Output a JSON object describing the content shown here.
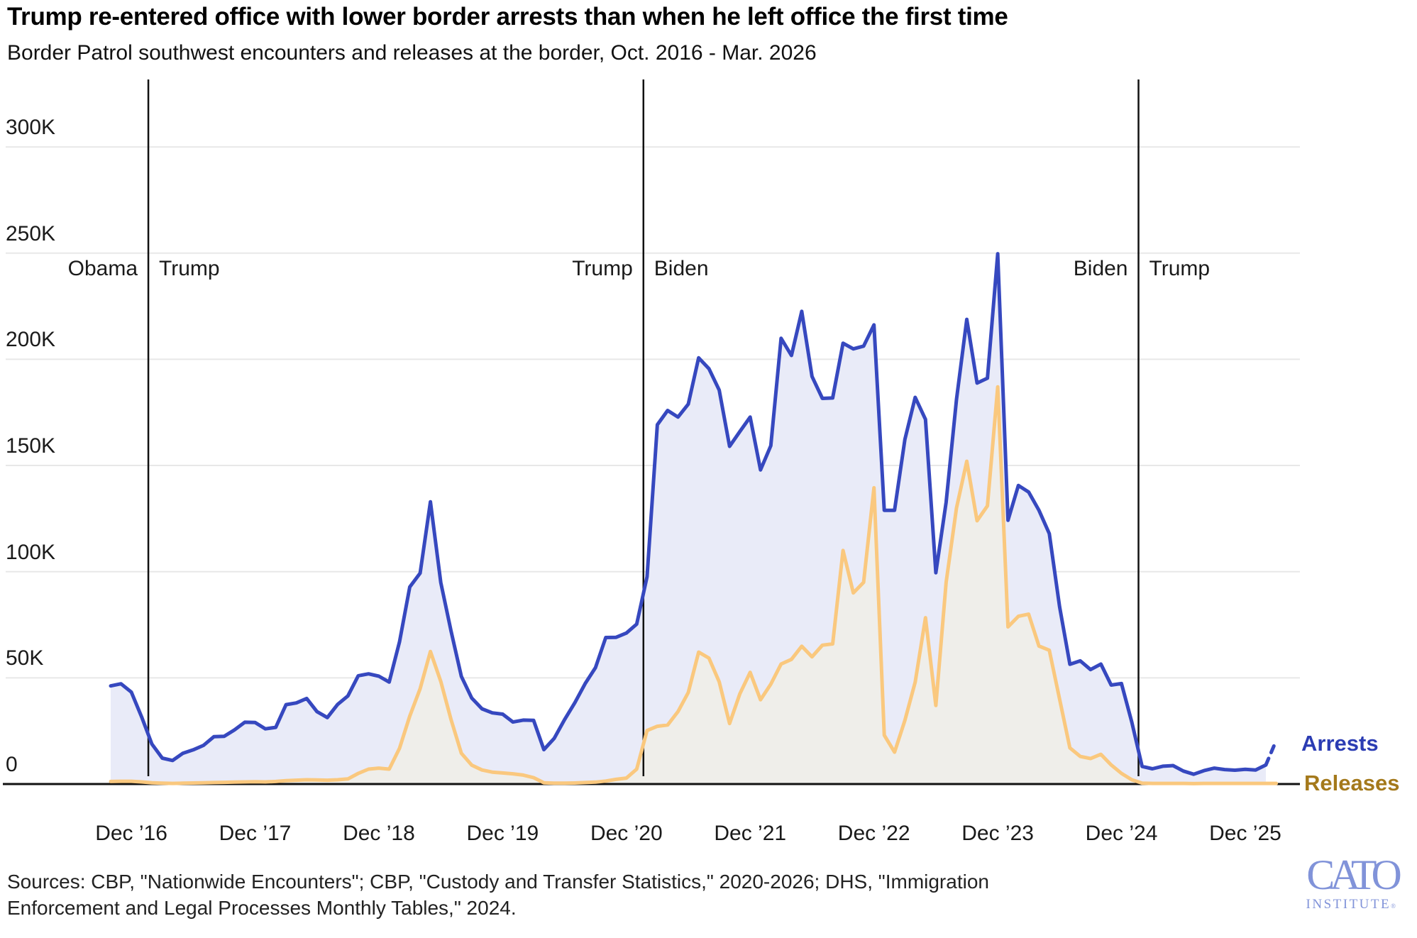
{
  "header": {
    "title": "Trump re-entered office with lower border arrests than when he left office the first time",
    "subtitle": "Border Patrol southwest encounters and releases at the border, Oct. 2016 - Mar. 2026"
  },
  "chart_data": {
    "type": "area",
    "x_start_month": "Oct 2016",
    "x_end_month": "Mar 2026",
    "ylim": [
      0,
      300000
    ],
    "grid": "horizontal",
    "y_axis": {
      "ticks": [
        {
          "label": "0",
          "value_K": 0
        },
        {
          "label": "50K",
          "value_K": 50
        },
        {
          "label": "100K",
          "value_K": 100
        },
        {
          "label": "150K",
          "value_K": 150
        },
        {
          "label": "200K",
          "value_K": 200
        },
        {
          "label": "250K",
          "value_K": 250
        },
        {
          "label": "300K",
          "value_K": 300
        }
      ]
    },
    "x_axis": {
      "ticks": [
        {
          "label": "Dec ’16",
          "month_index": 2
        },
        {
          "label": "Dec ’17",
          "month_index": 14
        },
        {
          "label": "Dec ’18",
          "month_index": 26
        },
        {
          "label": "Dec ’19",
          "month_index": 38
        },
        {
          "label": "Dec ’20",
          "month_index": 50
        },
        {
          "label": "Dec ’21",
          "month_index": 62
        },
        {
          "label": "Dec ’22",
          "month_index": 74
        },
        {
          "label": "Dec ’23",
          "month_index": 86
        },
        {
          "label": "Dec ’24",
          "month_index": 98
        },
        {
          "label": "Dec ’25",
          "month_index": 110
        }
      ]
    },
    "president_transitions": [
      {
        "left": "Obama",
        "right": "Trump",
        "month_index": 3.65
      },
      {
        "left": "Trump",
        "right": "Biden",
        "month_index": 51.65
      },
      {
        "left": "Biden",
        "right": "Trump",
        "month_index": 99.65
      }
    ],
    "series": [
      {
        "name": "Arrests",
        "line_color": "#3648bf",
        "fill_color": "#e9ebf8",
        "label_color": "#2b3cb3",
        "dashed_from_index": 112,
        "values_K": [
          46.2,
          47.2,
          43.3,
          31.6,
          18.8,
          12.2,
          11.1,
          14.5,
          16.1,
          18.2,
          22.3,
          22.5,
          25.5,
          29.1,
          29.0,
          26.0,
          26.7,
          37.4,
          38.2,
          40.3,
          34.1,
          31.3,
          37.5,
          41.5,
          51.0,
          51.9,
          50.8,
          48.0,
          66.9,
          92.8,
          99.3,
          132.9,
          94.9,
          72.0,
          50.7,
          40.5,
          35.4,
          33.5,
          32.9,
          29.2,
          30.1,
          30.0,
          16.2,
          21.5,
          30.3,
          38.3,
          47.3,
          54.8,
          69.0,
          69.1,
          71.1,
          75.3,
          97.6,
          169.2,
          175.9,
          172.8,
          178.9,
          200.7,
          195.6,
          185.5,
          159.0,
          166.0,
          172.8,
          147.9,
          159.3,
          209.9,
          201.8,
          222.6,
          191.9,
          181.6,
          181.8,
          207.6,
          204.9,
          206.2,
          216.2,
          128.9,
          128.9,
          162.3,
          182.1,
          171.7,
          99.5,
          132.7,
          181.1,
          218.8,
          188.8,
          191.1,
          249.7,
          124.2,
          140.6,
          137.5,
          128.9,
          117.9,
          83.5,
          56.4,
          58.0,
          53.9,
          56.5,
          46.6,
          47.3,
          29.1,
          8.3,
          7.2,
          8.4,
          8.7,
          6.1,
          4.6,
          6.3,
          7.5,
          6.8,
          6.5,
          6.9,
          6.6,
          9.0,
          20.5
        ]
      },
      {
        "name": "Releases",
        "line_color": "#fac87e",
        "fill_color": "#efeeea",
        "label_color": "#a4791b",
        "dashed_from_index": null,
        "values_K": [
          1.2,
          1.3,
          1.3,
          1.0,
          0.6,
          0.4,
          0.3,
          0.4,
          0.5,
          0.6,
          0.7,
          0.8,
          0.9,
          1.0,
          1.1,
          1.0,
          1.2,
          1.6,
          1.8,
          2.0,
          1.9,
          1.8,
          2.0,
          2.4,
          5.0,
          7.0,
          7.5,
          7.0,
          16.8,
          32.0,
          44.9,
          62.4,
          48.3,
          30.3,
          14.5,
          8.9,
          6.6,
          5.6,
          5.2,
          4.8,
          4.2,
          3.0,
          0.6,
          0.4,
          0.4,
          0.5,
          0.7,
          0.9,
          1.4,
          2.2,
          2.8,
          7.0,
          25.2,
          27.2,
          27.8,
          34.1,
          43.1,
          62.1,
          59.3,
          48.1,
          28.5,
          42.5,
          52.6,
          39.7,
          47.0,
          56.5,
          58.7,
          64.9,
          59.9,
          65.4,
          66.0,
          110.0,
          90.0,
          95.0,
          139.5,
          23.0,
          15.0,
          30.0,
          48.0,
          78.3,
          37.0,
          95.0,
          130.0,
          152.0,
          124.0,
          131.0,
          187.0,
          74.0,
          79.0,
          80.0,
          65.0,
          63.0,
          40.0,
          17.0,
          13.0,
          12.0,
          14.0,
          9.0,
          5.0,
          2.0,
          0.4,
          0.3,
          0.3,
          0.3,
          0.3,
          0.2,
          0.3,
          0.3,
          0.3,
          0.3,
          0.3,
          0.3,
          0.3,
          0.3
        ]
      }
    ]
  },
  "colors": {
    "gridline": "#e8e8e8",
    "axis": "#111111",
    "president_line": "#111111"
  },
  "footer": {
    "sources_line1": "Sources: CBP, \"Nationwide Encounters\"; CBP, \"Custody and Transfer Statistics,\" 2020-2026; DHS, \"Immigration",
    "sources_line2": "Enforcement and Legal Processes Monthly Tables,\" 2024.",
    "logo": {
      "line1": "CATO",
      "line2": "INSTITUTE",
      "reg": "®"
    }
  }
}
